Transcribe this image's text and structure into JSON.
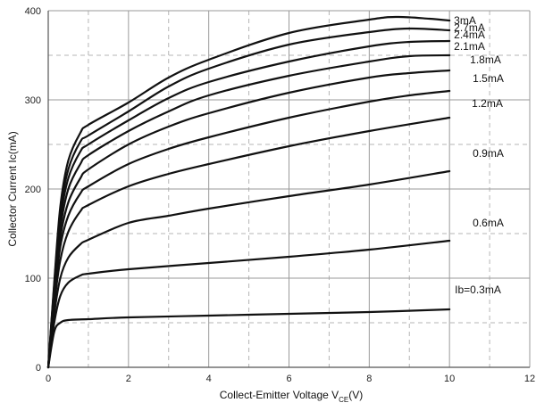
{
  "chart_data": {
    "type": "line",
    "xlabel": "Collect-Emitter Voltage  V",
    "xlabel_sub": "CE",
    "xlabel_unit": "(V)",
    "ylabel": "Collector  Current  Ic(mA)",
    "xlim": [
      0,
      12
    ],
    "ylim": [
      0,
      400
    ],
    "x_ticks": [
      0,
      2,
      4,
      6,
      8,
      10,
      12
    ],
    "y_ticks": [
      0,
      100,
      200,
      300,
      400
    ],
    "major_grid": true,
    "minor_grid_dashed": true,
    "series": [
      {
        "name": "Ib=0.3mA",
        "x": [
          0,
          0.15,
          0.3,
          0.5,
          1,
          2,
          4,
          6,
          8,
          10
        ],
        "y": [
          0,
          40,
          50,
          53,
          54,
          56,
          58,
          60,
          62,
          65
        ]
      },
      {
        "name": "0.6mA",
        "x": [
          0,
          0.15,
          0.3,
          0.5,
          0.8,
          1,
          2,
          4,
          6,
          8,
          10
        ],
        "y": [
          0,
          50,
          80,
          95,
          103,
          105,
          110,
          117,
          124,
          132,
          142
        ]
      },
      {
        "name": "0.9mA",
        "x": [
          0,
          0.15,
          0.3,
          0.5,
          0.8,
          1,
          2,
          3,
          4,
          6,
          8,
          10
        ],
        "y": [
          0,
          60,
          100,
          123,
          138,
          143,
          162,
          170,
          178,
          192,
          205,
          220
        ]
      },
      {
        "name": "1.2mA",
        "x": [
          0,
          0.15,
          0.3,
          0.5,
          0.8,
          1,
          2,
          3,
          4,
          6,
          8,
          10
        ],
        "y": [
          0,
          70,
          120,
          152,
          175,
          182,
          203,
          217,
          228,
          248,
          265,
          280
        ]
      },
      {
        "name": "1.5mA",
        "x": [
          0,
          0.15,
          0.3,
          0.5,
          0.8,
          1,
          2,
          3,
          4,
          6,
          8,
          9,
          10
        ],
        "y": [
          0,
          75,
          135,
          170,
          195,
          203,
          228,
          245,
          258,
          280,
          298,
          305,
          310
        ]
      },
      {
        "name": "1.8mA",
        "x": [
          0,
          0.15,
          0.3,
          0.5,
          0.8,
          1,
          2,
          3,
          4,
          6,
          8,
          9,
          10
        ],
        "y": [
          0,
          80,
          145,
          185,
          212,
          222,
          250,
          270,
          285,
          308,
          325,
          330,
          333
        ]
      },
      {
        "name": "2.1mA",
        "x": [
          0,
          0.15,
          0.3,
          0.5,
          0.8,
          1,
          2,
          3,
          4,
          6,
          8,
          9,
          10
        ],
        "y": [
          0,
          85,
          155,
          200,
          228,
          238,
          265,
          287,
          305,
          327,
          343,
          349,
          350
        ]
      },
      {
        "name": "2.4mA",
        "x": [
          0,
          0.15,
          0.3,
          0.5,
          0.8,
          1,
          2,
          3,
          4,
          6,
          8,
          9,
          10
        ],
        "y": [
          0,
          90,
          165,
          212,
          242,
          250,
          277,
          302,
          320,
          343,
          360,
          365,
          366
        ]
      },
      {
        "name": "2.7mA",
        "x": [
          0,
          0.15,
          0.3,
          0.5,
          0.8,
          1,
          2,
          3,
          4,
          6,
          8,
          9,
          10
        ],
        "y": [
          0,
          93,
          173,
          222,
          253,
          260,
          287,
          315,
          335,
          362,
          376,
          380,
          378
        ]
      },
      {
        "name": "3mA",
        "x": [
          0,
          0.15,
          0.3,
          0.5,
          0.8,
          1,
          2,
          3,
          4,
          6,
          8,
          8.7,
          9.5,
          10
        ],
        "y": [
          0,
          96,
          180,
          232,
          263,
          272,
          297,
          325,
          345,
          375,
          390,
          393,
          391,
          389
        ]
      }
    ]
  }
}
